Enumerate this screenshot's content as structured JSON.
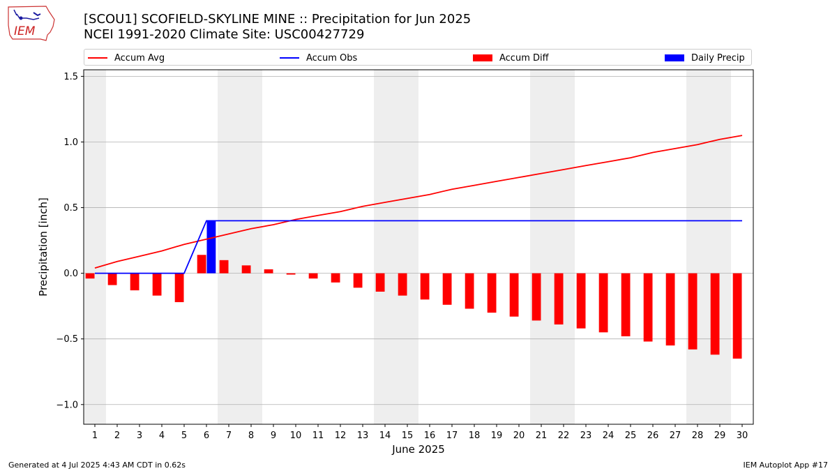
{
  "header": {
    "title": "[SCOU1] SCOFIELD-SKYLINE MINE :: Precipitation for Jun 2025",
    "subtitle": "NCEI 1991-2020 Climate Site: USC00427729",
    "logo_text": "IEM"
  },
  "footer": {
    "generated": "Generated at 4 Jul 2025 4:43 AM CDT in 0.62s",
    "app": "IEM Autoplot App #17"
  },
  "colors": {
    "accum_avg": "#ff0000",
    "accum_obs": "#0000ff",
    "accum_diff": "#ff0000",
    "daily_precip": "#0000ff",
    "weekend_shade": "#eeeeee",
    "grid": "#b0b0b0"
  },
  "chart_data": {
    "type": "bar",
    "xlabel": "June 2025",
    "ylabel": "Precipitation [inch]",
    "ylim": [
      -1.15,
      1.55
    ],
    "yticks": [
      -1.0,
      -0.5,
      0.0,
      0.5,
      1.0,
      1.5
    ],
    "ytick_labels": [
      "−1.0",
      "−0.5",
      "0.0",
      "0.5",
      "1.0",
      "1.5"
    ],
    "grid": "horizontal",
    "legend_position": "top",
    "x": [
      1,
      2,
      3,
      4,
      5,
      6,
      7,
      8,
      9,
      10,
      11,
      12,
      13,
      14,
      15,
      16,
      17,
      18,
      19,
      20,
      21,
      22,
      23,
      24,
      25,
      26,
      27,
      28,
      29,
      30
    ],
    "x_tick_labels": [
      "1",
      "2",
      "3",
      "4",
      "5",
      "6",
      "7",
      "8",
      "9",
      "10",
      "11",
      "12",
      "13",
      "14",
      "15",
      "16",
      "17",
      "18",
      "19",
      "20",
      "21",
      "22",
      "23",
      "24",
      "25",
      "26",
      "27",
      "28",
      "29",
      "30"
    ],
    "weekend_spans": [
      [
        0.5,
        1.5
      ],
      [
        6.5,
        8.5
      ],
      [
        13.5,
        15.5
      ],
      [
        20.5,
        22.5
      ],
      [
        27.5,
        29.5
      ]
    ],
    "series": [
      {
        "name": "Accum Avg",
        "kind": "line",
        "values": [
          0.04,
          0.09,
          0.13,
          0.17,
          0.22,
          0.26,
          0.3,
          0.34,
          0.37,
          0.41,
          0.44,
          0.47,
          0.51,
          0.54,
          0.57,
          0.6,
          0.64,
          0.67,
          0.7,
          0.73,
          0.76,
          0.79,
          0.82,
          0.85,
          0.88,
          0.92,
          0.95,
          0.98,
          1.02,
          1.05
        ]
      },
      {
        "name": "Accum Obs",
        "kind": "line",
        "values": [
          0.0,
          0.0,
          0.0,
          0.0,
          0.0,
          0.4,
          0.4,
          0.4,
          0.4,
          0.4,
          0.4,
          0.4,
          0.4,
          0.4,
          0.4,
          0.4,
          0.4,
          0.4,
          0.4,
          0.4,
          0.4,
          0.4,
          0.4,
          0.4,
          0.4,
          0.4,
          0.4,
          0.4,
          0.4,
          0.4
        ]
      },
      {
        "name": "Accum Diff",
        "kind": "bar",
        "values": [
          -0.04,
          -0.09,
          -0.13,
          -0.17,
          -0.22,
          0.14,
          0.1,
          0.06,
          0.03,
          -0.01,
          -0.04,
          -0.07,
          -0.11,
          -0.14,
          -0.17,
          -0.2,
          -0.24,
          -0.27,
          -0.3,
          -0.33,
          -0.36,
          -0.39,
          -0.42,
          -0.45,
          -0.48,
          -0.52,
          -0.55,
          -0.58,
          -0.62,
          -0.65
        ]
      },
      {
        "name": "Daily Precip",
        "kind": "bar",
        "values": [
          0,
          0,
          0,
          0,
          0,
          0.4,
          0,
          0,
          0,
          0,
          0,
          0,
          0,
          0,
          0,
          0,
          0,
          0,
          0,
          0,
          0,
          0,
          0,
          0,
          0,
          0,
          0,
          0,
          0,
          0
        ]
      }
    ]
  }
}
